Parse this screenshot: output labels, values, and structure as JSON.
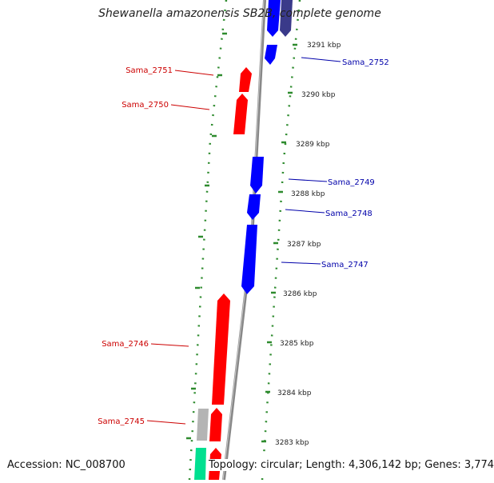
{
  "title": "Shewanella amazonensis SB2B, complete genome",
  "footer": {
    "accession": "Accession: NC_008700",
    "topology": "Topology: circular; Length: 4,306,142 bp; Genes: 3,774"
  },
  "colors": {
    "forward_gene": "#ff0000",
    "reverse_gene": "#0000ff",
    "reverse_gene_dark": "#3a3a8a",
    "other_gene_grey": "#b4b4b4",
    "other_gene_green": "#00e090",
    "backbone": "#808080",
    "dots": "#2e8b2e",
    "label_forward": "#cc0000",
    "label_reverse": "#0000aa"
  },
  "scale_ticks": [
    "3291 kbp",
    "3290 kbp",
    "3289 kbp",
    "3288 kbp",
    "3287 kbp",
    "3286 kbp",
    "3285 kbp",
    "3284 kbp",
    "3283 kbp"
  ],
  "gene_labels": {
    "Sama_2752": "Sama_2752",
    "Sama_2751": "Sama_2751",
    "Sama_2750": "Sama_2750",
    "Sama_2749": "Sama_2749",
    "Sama_2748": "Sama_2748",
    "Sama_2747": "Sama_2747",
    "Sama_2746": "Sama_2746",
    "Sama_2745": "Sama_2745"
  }
}
